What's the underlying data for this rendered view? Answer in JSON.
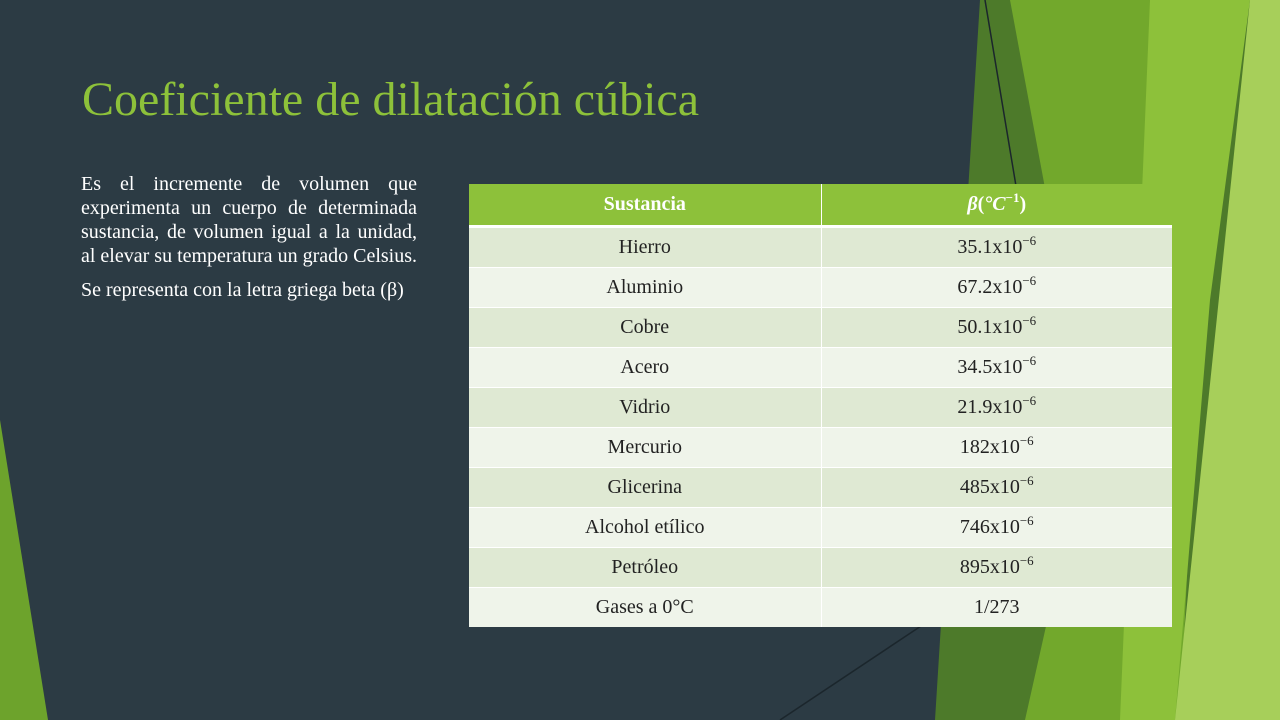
{
  "slide": {
    "title": "Coeficiente de dilatación cúbica",
    "paragraphs": [
      "Es el incremente de volumen que experimenta un cuerpo de determinada sustancia, de volumen igual a la unidad, al elevar su temperatura un grado Celsius.",
      "Se representa con la letra griega beta (β)"
    ]
  },
  "table": {
    "header": {
      "substance": "Sustancia",
      "beta_symbol": "β",
      "beta_open": "(",
      "beta_unit": "°C",
      "beta_exp": "−1",
      "beta_close": ")"
    },
    "rows": [
      {
        "substance": "Hierro",
        "base": "35.1x10",
        "exp": "−6"
      },
      {
        "substance": "Aluminio",
        "base": "67.2x10",
        "exp": "−6"
      },
      {
        "substance": "Cobre",
        "base": "50.1x10",
        "exp": "−6"
      },
      {
        "substance": "Acero",
        "base": "34.5x10",
        "exp": "−6"
      },
      {
        "substance": "Vidrio",
        "base": "21.9x10",
        "exp": "−6"
      },
      {
        "substance": "Mercurio",
        "base": "182x10",
        "exp": "−6"
      },
      {
        "substance": "Glicerina",
        "base": "485x10",
        "exp": "−6"
      },
      {
        "substance": "Alcohol etílico",
        "base": "746x10",
        "exp": "−6"
      },
      {
        "substance": "Petróleo",
        "base": "895x10",
        "exp": "−6"
      },
      {
        "substance": "Gases a 0°C",
        "base": "1/273",
        "exp": ""
      }
    ]
  },
  "colors": {
    "background": "#2c3b44",
    "accent": "#8dc13a",
    "row_dark": "#dfe9d3",
    "row_light": "#eff4ea"
  }
}
